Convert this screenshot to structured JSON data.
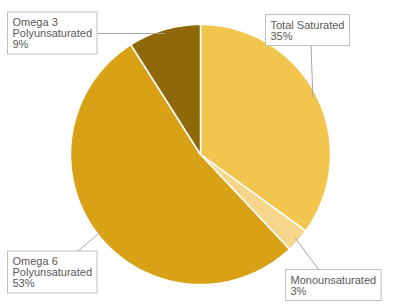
{
  "chart_data": {
    "type": "pie",
    "categories": [
      "Total Saturated",
      "Monounsaturated",
      "Omega 6 Polyunsaturated",
      "Omega 3 Polyunsaturated"
    ],
    "values": [
      35,
      3,
      53,
      9
    ],
    "value_labels": [
      "35%",
      "3%",
      "53%",
      "9%"
    ],
    "colors": [
      "#f1c54e",
      "#f6d68a",
      "#d9a116",
      "#8e6809"
    ],
    "data_labels": true
  }
}
